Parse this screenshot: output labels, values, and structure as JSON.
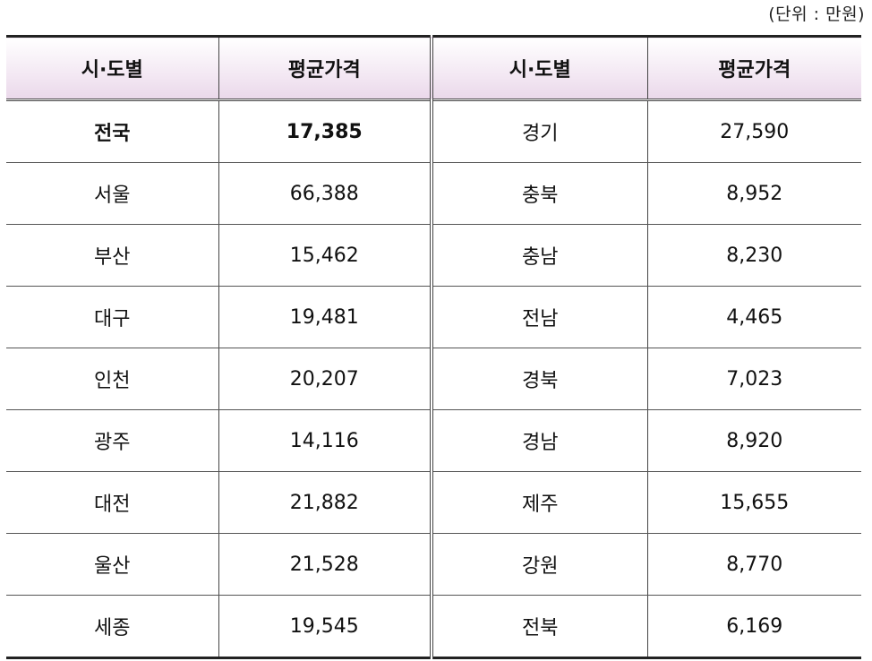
{
  "unit_note": "(단위 : 만원)",
  "headers": {
    "region_left": "시·도별",
    "price_left": "평균가격",
    "region_right": "시·도별",
    "price_right": "평균가격"
  },
  "rows": [
    {
      "left_region": "전국",
      "left_price": "17,385",
      "right_region": "경기",
      "right_price": "27,590"
    },
    {
      "left_region": "서울",
      "left_price": "66,388",
      "right_region": "충북",
      "right_price": "8,952"
    },
    {
      "left_region": "부산",
      "left_price": "15,462",
      "right_region": "충남",
      "right_price": "8,230"
    },
    {
      "left_region": "대구",
      "left_price": "19,481",
      "right_region": "전남",
      "right_price": "4,465"
    },
    {
      "left_region": "인천",
      "left_price": "20,207",
      "right_region": "경북",
      "right_price": "7,023"
    },
    {
      "left_region": "광주",
      "left_price": "14,116",
      "right_region": "경남",
      "right_price": "8,920"
    },
    {
      "left_region": "대전",
      "left_price": "21,882",
      "right_region": "제주",
      "right_price": "15,655"
    },
    {
      "left_region": "울산",
      "left_price": "21,528",
      "right_region": "강원",
      "right_price": "8,770"
    },
    {
      "left_region": "세종",
      "left_price": "19,545",
      "right_region": "전북",
      "right_price": "6,169"
    }
  ]
}
